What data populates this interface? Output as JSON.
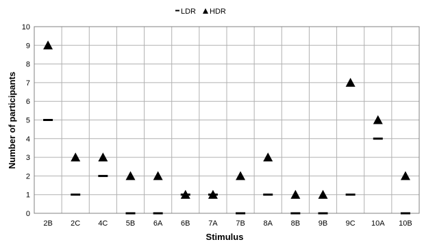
{
  "chart_data": {
    "type": "scatter",
    "title": "",
    "xlabel": "Stimulus",
    "ylabel": "Number of participants",
    "categories": [
      "2B",
      "2C",
      "4C",
      "5B",
      "6A",
      "6B",
      "7A",
      "7B",
      "8A",
      "8B",
      "9B",
      "9C",
      "10A",
      "10B"
    ],
    "ylim": [
      0,
      10
    ],
    "yticks": [
      "0",
      "1",
      "2",
      "3",
      "4",
      "5",
      "6",
      "7",
      "8",
      "9",
      "10"
    ],
    "grid": true,
    "legend_position": "top",
    "series": [
      {
        "name": "LDR",
        "marker": "dash",
        "values": [
          5,
          1,
          2,
          0,
          0,
          1,
          1,
          0,
          1,
          0,
          0,
          1,
          4,
          0
        ]
      },
      {
        "name": "HDR",
        "marker": "triangle",
        "values": [
          9,
          3,
          3,
          2,
          2,
          1,
          1,
          2,
          3,
          1,
          1,
          7,
          5,
          2
        ]
      }
    ],
    "colors": {
      "marker": "#000000",
      "grid": "#b0b0b0",
      "axis": "#808080"
    }
  }
}
